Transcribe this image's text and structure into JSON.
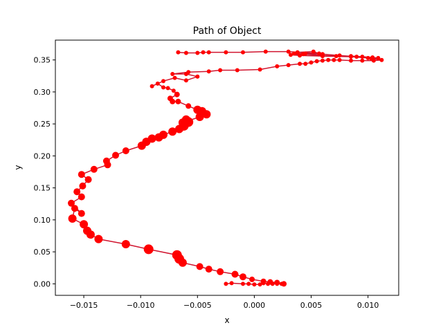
{
  "chart_data": {
    "type": "scatter",
    "title": "Path of Object",
    "xlabel": "x",
    "ylabel": "y",
    "xlim": [
      -0.0175,
      0.0127
    ],
    "ylim": [
      -0.018,
      0.381
    ],
    "xticks": [
      -0.015,
      -0.01,
      -0.005,
      0.0,
      0.005,
      0.01
    ],
    "xtick_labels": [
      "−0.015",
      "−0.010",
      "−0.005",
      "0.000",
      "0.005",
      "0.010"
    ],
    "yticks": [
      0.0,
      0.05,
      0.1,
      0.15,
      0.2,
      0.25,
      0.3,
      0.35
    ],
    "ytick_labels": [
      "0.00",
      "0.05",
      "0.10",
      "0.15",
      "0.20",
      "0.25",
      "0.30",
      "0.35"
    ],
    "grid": false,
    "line_color": "#d0142e",
    "marker_color": "#ff0000",
    "marker_size_note": "marker size varies along the path",
    "series": [
      {
        "x": [
          -0.0025,
          -0.002,
          -0.001,
          -0.0005,
          0.0,
          0.0005,
          0.0008,
          0.0012,
          0.0016,
          0.002,
          0.0024,
          0.0026,
          0.002,
          0.0014,
          0.0008,
          -0.0002,
          -0.001,
          -0.0017,
          -0.003,
          -0.004,
          -0.0048,
          -0.0063,
          -0.0066,
          -0.0068,
          -0.0093,
          -0.0113,
          -0.0137,
          -0.0144,
          -0.0147,
          -0.015,
          -0.016,
          -0.0158,
          -0.0152,
          -0.0161,
          -0.0152,
          -0.0156,
          -0.0151,
          -0.0146,
          -0.0152,
          -0.0141,
          -0.0129,
          -0.013,
          -0.0122,
          -0.0113,
          -0.0099,
          -0.0095,
          -0.009,
          -0.0084,
          -0.008,
          -0.0072,
          -0.0066,
          -0.0062,
          -0.0058,
          -0.006,
          -0.0063,
          -0.0048,
          -0.0042,
          -0.0046,
          -0.005,
          -0.0058,
          -0.0067,
          -0.0072,
          -0.0074,
          -0.0068,
          -0.0071,
          -0.0076,
          -0.008,
          -0.0085,
          -0.009,
          -0.008,
          -0.007,
          -0.006,
          -0.005,
          -0.006,
          -0.0072,
          -0.0058,
          -0.004,
          -0.003,
          -0.0015,
          0.0005,
          0.002,
          0.003,
          0.004,
          0.0045,
          0.005,
          0.0055,
          0.006,
          0.0065,
          0.007,
          0.0075,
          0.0085,
          0.0095,
          0.0105,
          0.0112,
          0.01,
          0.0085,
          0.006,
          0.004,
          0.0032,
          0.0043,
          0.006,
          0.0072,
          0.0085,
          0.0095,
          0.0104,
          0.0109,
          0.0103,
          0.009,
          0.0075,
          0.006,
          0.0045,
          0.0035,
          0.0038,
          0.0052,
          0.0057,
          0.003,
          0.001,
          -0.001,
          -0.0025,
          -0.004,
          -0.0045,
          -0.005,
          -0.006,
          -0.0067
        ],
        "y": [
          0.0,
          0.001,
          0.0,
          0.0,
          -0.001,
          -0.001,
          0.001,
          0.0,
          0.0,
          0.0,
          0.0,
          0.0,
          0.002,
          0.003,
          0.004,
          0.007,
          0.011,
          0.015,
          0.019,
          0.023,
          0.027,
          0.033,
          0.039,
          0.045,
          0.054,
          0.062,
          0.07,
          0.077,
          0.083,
          0.093,
          0.102,
          0.118,
          0.11,
          0.126,
          0.136,
          0.144,
          0.153,
          0.163,
          0.171,
          0.179,
          0.186,
          0.192,
          0.201,
          0.208,
          0.216,
          0.222,
          0.227,
          0.229,
          0.233,
          0.238,
          0.242,
          0.247,
          0.253,
          0.257,
          0.252,
          0.261,
          0.265,
          0.27,
          0.272,
          0.278,
          0.285,
          0.285,
          0.29,
          0.296,
          0.302,
          0.306,
          0.307,
          0.313,
          0.309,
          0.317,
          0.322,
          0.318,
          0.324,
          0.328,
          0.328,
          0.331,
          0.332,
          0.334,
          0.334,
          0.335,
          0.34,
          0.342,
          0.344,
          0.344,
          0.346,
          0.348,
          0.349,
          0.35,
          0.35,
          0.35,
          0.349,
          0.349,
          0.349,
          0.35,
          0.353,
          0.355,
          0.356,
          0.357,
          0.358,
          0.359,
          0.357,
          0.356,
          0.356,
          0.355,
          0.354,
          0.353,
          0.352,
          0.355,
          0.357,
          0.359,
          0.36,
          0.36,
          0.362,
          0.363,
          0.36,
          0.363,
          0.363,
          0.362,
          0.362,
          0.362,
          0.362,
          0.361,
          0.361,
          0.362
        ],
        "sizes": [
          3,
          3,
          3,
          3,
          3,
          3,
          3,
          3,
          3,
          3,
          3,
          4,
          4,
          4,
          4,
          4,
          5,
          5,
          5,
          5,
          5,
          6,
          7,
          7,
          7,
          6,
          6,
          6,
          6,
          6,
          6,
          5,
          5,
          5,
          5,
          5,
          5,
          5,
          5,
          5,
          5,
          5,
          5,
          5,
          6,
          6,
          6,
          6,
          6,
          6,
          6,
          7,
          7,
          6,
          6,
          6,
          6,
          6,
          6,
          4,
          4,
          4,
          4,
          4,
          3,
          3,
          3,
          3,
          3,
          3,
          3,
          3,
          3,
          3,
          3,
          3,
          3,
          3,
          3,
          3,
          3,
          3,
          3,
          3,
          3,
          3,
          3,
          3,
          3,
          3,
          3,
          3,
          3,
          3,
          3,
          3,
          3,
          3,
          3,
          3,
          3,
          3,
          3,
          3,
          3,
          3,
          3,
          3,
          3,
          3,
          3,
          3,
          3,
          3,
          3,
          3,
          3,
          3,
          3,
          3,
          3,
          3,
          3,
          3
        ]
      }
    ]
  }
}
